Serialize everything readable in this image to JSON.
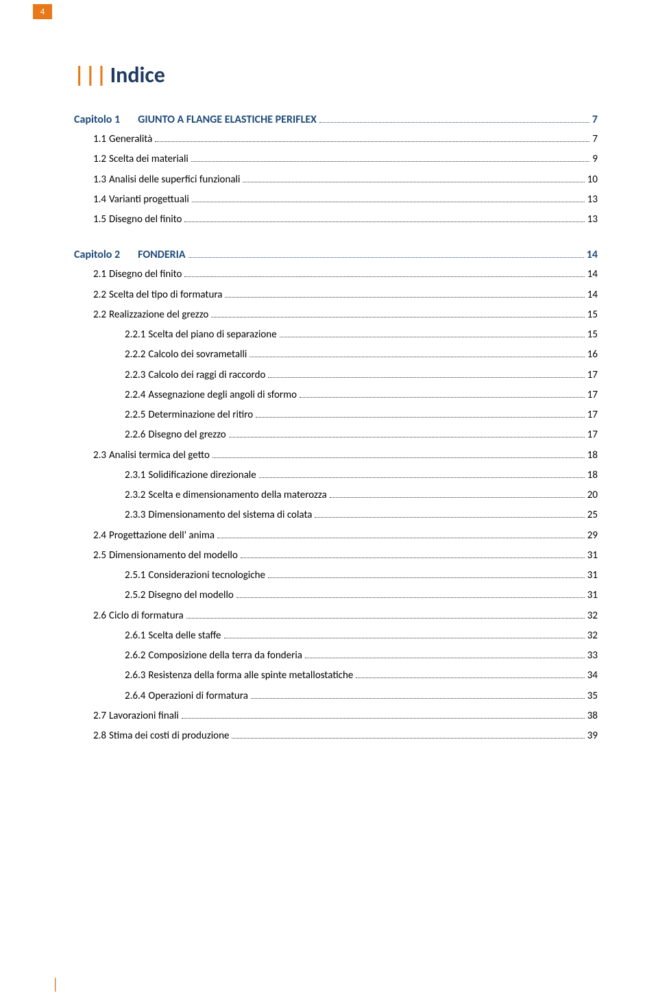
{
  "page_number": "4",
  "colors": {
    "accent": "#e97818",
    "heading": "#1f3a60",
    "chapter": "#1f4b7a",
    "text": "#000000",
    "background": "#ffffff"
  },
  "main_title": "Indice",
  "bars_glyph": "|||",
  "chapter_label": "Capitolo",
  "toc": [
    {
      "type": "chapter",
      "num": "1",
      "title": "GIUNTO A FLANGE ELASTICHE PERIFLEX",
      "page": "7"
    },
    {
      "type": "entry",
      "level": 1,
      "num": "1.1",
      "title": "Generalità",
      "page": "7"
    },
    {
      "type": "entry",
      "level": 1,
      "num": "1.2",
      "title": "Scelta dei materiali",
      "page": "9"
    },
    {
      "type": "entry",
      "level": 1,
      "num": "1.3",
      "title": "Analisi delle superfici funzionali",
      "page": "10"
    },
    {
      "type": "entry",
      "level": 1,
      "num": "1.4",
      "title": "Varianti progettuali",
      "page": "13"
    },
    {
      "type": "entry",
      "level": 1,
      "num": "1.5",
      "title": "Disegno del finito",
      "page": "13"
    },
    {
      "type": "chapter",
      "num": "2",
      "title": "FONDERIA",
      "page": "14"
    },
    {
      "type": "entry",
      "level": 1,
      "num": "2.1",
      "title": "Disegno del finito",
      "page": "14"
    },
    {
      "type": "entry",
      "level": 1,
      "num": "2.2",
      "title": "Scelta del tipo di formatura",
      "page": "14"
    },
    {
      "type": "entry",
      "level": 1,
      "num": "2.2",
      "title": "Realizzazione del grezzo",
      "page": "15"
    },
    {
      "type": "entry",
      "level": 2,
      "num": "2.2.1",
      "title": "Scelta del piano di separazione",
      "page": "15"
    },
    {
      "type": "entry",
      "level": 2,
      "num": "2.2.2",
      "title": "Calcolo dei sovrametalli",
      "page": "16"
    },
    {
      "type": "entry",
      "level": 2,
      "num": "2.2.3",
      "title": "Calcolo dei raggi di raccordo",
      "page": "17"
    },
    {
      "type": "entry",
      "level": 2,
      "num": "2.2.4",
      "title": "Assegnazione degli angoli di sformo",
      "page": "17"
    },
    {
      "type": "entry",
      "level": 2,
      "num": "2.2.5",
      "title": "Determinazione del ritiro",
      "page": "17"
    },
    {
      "type": "entry",
      "level": 2,
      "num": "2.2.6",
      "title": "Disegno del grezzo",
      "page": "17"
    },
    {
      "type": "entry",
      "level": 1,
      "num": "2.3",
      "title": "Analisi termica del getto",
      "page": "18"
    },
    {
      "type": "entry",
      "level": 2,
      "num": "2.3.1",
      "title": "Solidificazione direzionale",
      "page": "18"
    },
    {
      "type": "entry",
      "level": 2,
      "num": "2.3.2",
      "title": "Scelta e dimensionamento della materozza",
      "page": "20"
    },
    {
      "type": "entry",
      "level": 2,
      "num": "2.3.3",
      "title": "Dimensionamento del sistema di colata",
      "page": "25"
    },
    {
      "type": "entry",
      "level": 1,
      "num": "2.4",
      "title": "Progettazione dell' anima",
      "page": "29"
    },
    {
      "type": "entry",
      "level": 1,
      "num": "2.5",
      "title": "Dimensionamento del modello",
      "page": "31"
    },
    {
      "type": "entry",
      "level": 2,
      "num": "2.5.1",
      "title": "Considerazioni tecnologiche",
      "page": "31"
    },
    {
      "type": "entry",
      "level": 2,
      "num": "2.5.2",
      "title": "Disegno del modello",
      "page": "31"
    },
    {
      "type": "entry",
      "level": 1,
      "num": "2.6",
      "title": "Ciclo di formatura",
      "page": "32"
    },
    {
      "type": "entry",
      "level": 2,
      "num": "2.6.1",
      "title": "Scelta delle staffe",
      "page": "32"
    },
    {
      "type": "entry",
      "level": 2,
      "num": "2.6.2",
      "title": "Composizione della terra da fonderia",
      "page": "33"
    },
    {
      "type": "entry",
      "level": 2,
      "num": "2.6.3",
      "title": "Resistenza della forma alle spinte metallostatiche",
      "page": "34"
    },
    {
      "type": "entry",
      "level": 2,
      "num": "2.6.4",
      "title": "Operazioni di formatura",
      "page": "35"
    },
    {
      "type": "entry",
      "level": 1,
      "num": "2.7",
      "title": "Lavorazioni finali",
      "page": "38"
    },
    {
      "type": "entry",
      "level": 1,
      "num": "2.8",
      "title": "Stima dei costi di produzione",
      "page": "39"
    }
  ]
}
